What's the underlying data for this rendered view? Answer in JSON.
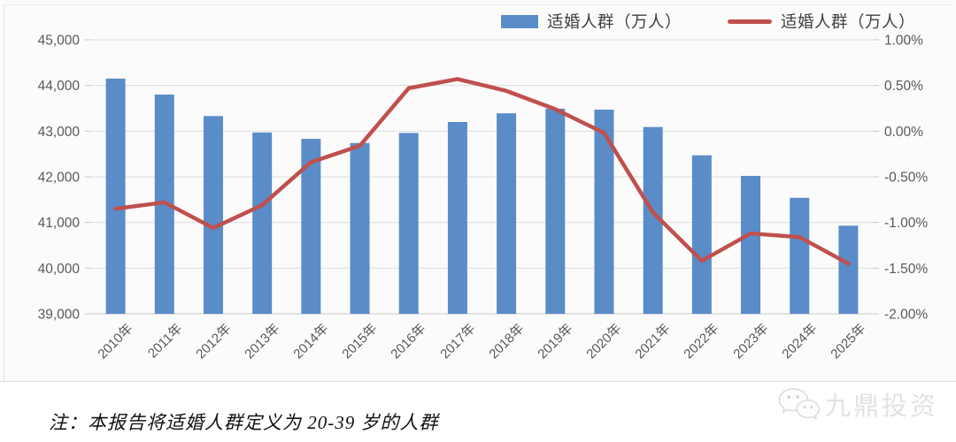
{
  "legend": {
    "bar": {
      "label": "适婚人群（万人）"
    },
    "line": {
      "label": "适婚人群（万人）"
    }
  },
  "chart_data": {
    "type": "bar+line",
    "categories": [
      "2010年",
      "2011年",
      "2012年",
      "2013年",
      "2014年",
      "2015年",
      "2016年",
      "2017年",
      "2018年",
      "2019年",
      "2020年",
      "2021年",
      "2022年",
      "2023年",
      "2024年",
      "2025年"
    ],
    "series": [
      {
        "name": "适婚人群（万人）",
        "type": "bar",
        "axis": "left",
        "values": [
          44150,
          43800,
          43330,
          42970,
          42830,
          42740,
          42960,
          43200,
          43390,
          43490,
          43470,
          43090,
          42470,
          42020,
          41540,
          40930
        ]
      },
      {
        "name": "适婚人群（万人）",
        "type": "line",
        "axis": "right",
        "unit": "%",
        "values": [
          -0.85,
          -0.78,
          -1.06,
          -0.81,
          -0.34,
          -0.16,
          0.47,
          0.57,
          0.44,
          0.24,
          -0.02,
          -0.89,
          -1.42,
          -1.12,
          -1.16,
          -1.45
        ]
      }
    ],
    "left_axis": {
      "min": 39000,
      "max": 45000,
      "step": 1000,
      "tick_labels": [
        "45,000",
        "44,000",
        "43,000",
        "42,000",
        "41,000",
        "40,000",
        "39,000"
      ]
    },
    "right_axis": {
      "min": -2.0,
      "max": 1.0,
      "step": 0.5,
      "tick_labels": [
        "1.00%",
        "0.50%",
        "0.00%",
        "-0.50%",
        "-1.00%",
        "-1.50%",
        "-2.00%"
      ]
    },
    "grid": true,
    "legend_position": "top-right"
  },
  "colors": {
    "bar": "#5A8CC8",
    "line": "#C0504D",
    "grid": "#dcdcdc",
    "axis_line": "#c8c8c8",
    "axis_text": "#595959",
    "legend_text": "#3f3f3f",
    "chart_bg": "#fbfbfb"
  },
  "footnote": "注：本报告将适婚人群定义为 20-39 岁的人群",
  "watermark": {
    "icon": "wechat-icon",
    "text": "九鼎投资"
  }
}
